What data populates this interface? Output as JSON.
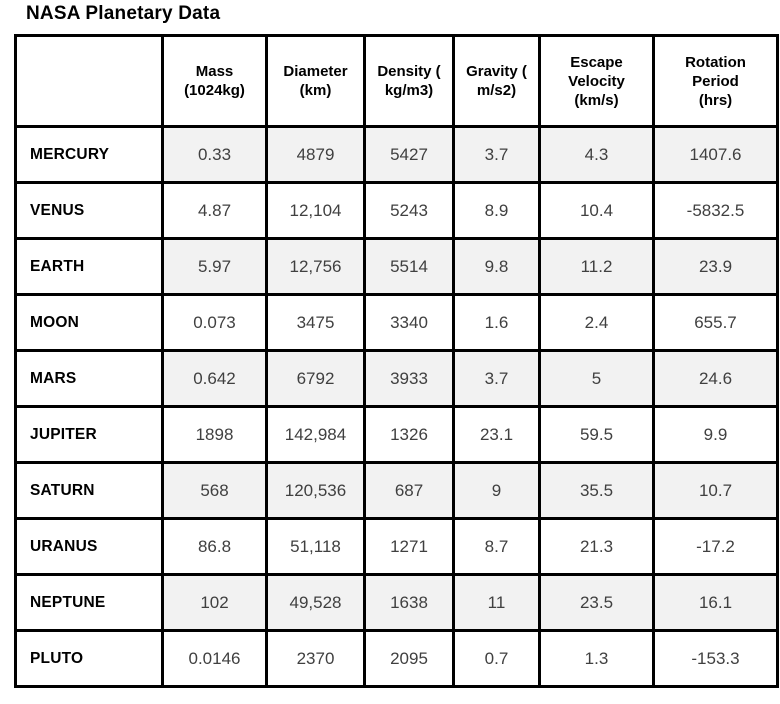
{
  "page": {
    "title": "NASA Planetary Data"
  },
  "table": {
    "columns": [
      {
        "id": "planet",
        "label_lines": []
      },
      {
        "id": "mass",
        "label_lines": [
          "Mass",
          "(1024kg)"
        ]
      },
      {
        "id": "diameter",
        "label_lines": [
          "Diameter",
          "(km)"
        ]
      },
      {
        "id": "density",
        "label_lines": [
          "Density (",
          "kg/m3)"
        ]
      },
      {
        "id": "gravity",
        "label_lines": [
          "Gravity (",
          "m/s2)"
        ]
      },
      {
        "id": "escape-velocity",
        "label_lines": [
          "Escape",
          "Velocity",
          "(km/s)"
        ]
      },
      {
        "id": "rotation-period",
        "label_lines": [
          "Rotation",
          "Period",
          "(hrs)"
        ]
      }
    ],
    "rows": [
      {
        "planet": "MERCURY",
        "values": [
          "0.33",
          "4879",
          "5427",
          "3.7",
          "4.3",
          "1407.6"
        ]
      },
      {
        "planet": "VENUS",
        "values": [
          "4.87",
          "12,104",
          "5243",
          "8.9",
          "10.4",
          "-5832.5"
        ]
      },
      {
        "planet": "EARTH",
        "values": [
          "5.97",
          "12,756",
          "5514",
          "9.8",
          "11.2",
          "23.9"
        ]
      },
      {
        "planet": "MOON",
        "values": [
          "0.073",
          "3475",
          "3340",
          "1.6",
          "2.4",
          "655.7"
        ]
      },
      {
        "planet": "MARS",
        "values": [
          "0.642",
          "6792",
          "3933",
          "3.7",
          "5",
          "24.6"
        ]
      },
      {
        "planet": "JUPITER",
        "values": [
          "1898",
          "142,984",
          "1326",
          "23.1",
          "59.5",
          "9.9"
        ]
      },
      {
        "planet": "SATURN",
        "values": [
          "568",
          "120,536",
          "687",
          "9",
          "35.5",
          "10.7"
        ]
      },
      {
        "planet": "URANUS",
        "values": [
          "86.8",
          "51,118",
          "1271",
          "8.7",
          "21.3",
          "-17.2"
        ]
      },
      {
        "planet": "NEPTUNE",
        "values": [
          "102",
          "49,528",
          "1638",
          "11",
          "23.5",
          "16.1"
        ]
      },
      {
        "planet": "PLUTO",
        "values": [
          "0.0146",
          "2370",
          "2095",
          "0.7",
          "1.3",
          "-153.3"
        ]
      }
    ],
    "colors": {
      "grid_line": "#000000",
      "shaded_cell_bg": "#f2f2f2",
      "value_text": "#404040",
      "label_text": "#000000",
      "page_bg": "#ffffff"
    }
  }
}
